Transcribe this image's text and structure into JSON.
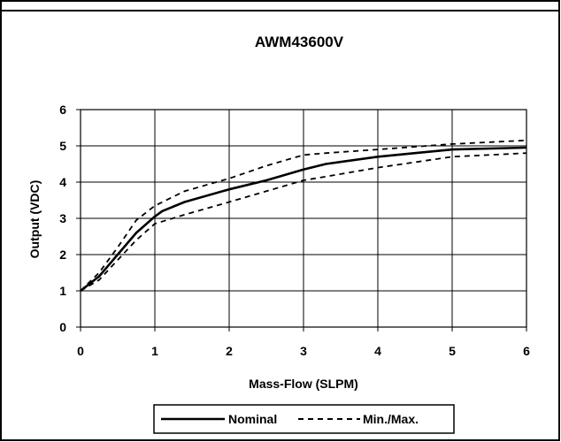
{
  "chart_data": {
    "type": "line",
    "title": "AWM43600V",
    "xlabel": "Mass-Flow (SLPM)",
    "ylabel": "Output (VDC)",
    "xlim": [
      0,
      6
    ],
    "ylim": [
      0,
      6
    ],
    "x_ticks": [
      "0",
      "1",
      "2",
      "3",
      "4",
      "5",
      "6"
    ],
    "y_ticks": [
      "0",
      "1",
      "2",
      "3",
      "4",
      "5",
      "6"
    ],
    "grid": true,
    "legend_position": "bottom",
    "series": [
      {
        "name": "Nominal",
        "style": "solid",
        "color": "#000000",
        "points": [
          [
            0,
            1.0
          ],
          [
            0.25,
            1.4
          ],
          [
            0.5,
            2.0
          ],
          [
            0.75,
            2.6
          ],
          [
            1.0,
            3.05
          ],
          [
            1.1,
            3.2
          ],
          [
            1.4,
            3.45
          ],
          [
            2.0,
            3.8
          ],
          [
            2.5,
            4.05
          ],
          [
            3.0,
            4.35
          ],
          [
            3.3,
            4.5
          ],
          [
            4.0,
            4.7
          ],
          [
            4.5,
            4.8
          ],
          [
            5.0,
            4.9
          ],
          [
            6.0,
            4.95
          ]
        ]
      },
      {
        "name": "Min./Max.",
        "style": "dashed",
        "color": "#000000",
        "points": [
          [
            0,
            1.0
          ],
          [
            0.25,
            1.5
          ],
          [
            0.5,
            2.2
          ],
          [
            0.75,
            2.95
          ],
          [
            1.0,
            3.35
          ],
          [
            1.4,
            3.75
          ],
          [
            2.0,
            4.1
          ],
          [
            2.5,
            4.45
          ],
          [
            3.0,
            4.75
          ],
          [
            3.3,
            4.8
          ],
          [
            4.0,
            4.9
          ],
          [
            5.0,
            5.05
          ],
          [
            6.0,
            5.15
          ]
        ]
      },
      {
        "name": "",
        "style": "dashed",
        "color": "#000000",
        "points": [
          [
            0,
            1.0
          ],
          [
            0.25,
            1.3
          ],
          [
            0.5,
            1.85
          ],
          [
            0.75,
            2.4
          ],
          [
            1.0,
            2.85
          ],
          [
            1.4,
            3.1
          ],
          [
            2.0,
            3.45
          ],
          [
            2.5,
            3.75
          ],
          [
            3.0,
            4.05
          ],
          [
            3.3,
            4.15
          ],
          [
            4.0,
            4.4
          ],
          [
            4.5,
            4.55
          ],
          [
            5.0,
            4.7
          ],
          [
            6.0,
            4.8
          ]
        ]
      }
    ]
  },
  "legend": {
    "items": [
      "Nominal",
      "Min./Max."
    ]
  }
}
